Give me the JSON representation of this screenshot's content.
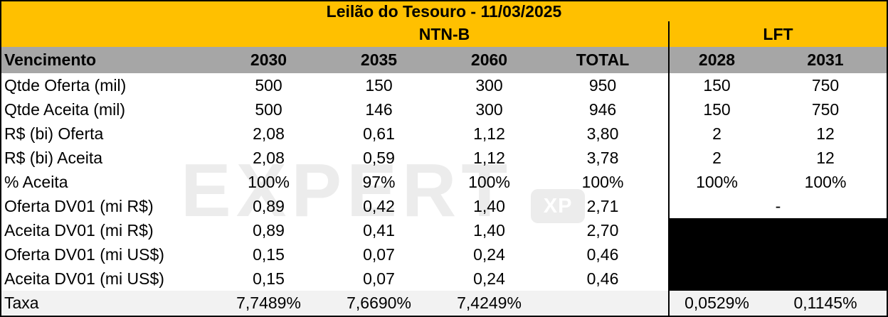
{
  "title": "Leilão do Tesouro - 11/03/2025",
  "groups": {
    "ntnb": "NTN-B",
    "lft": "LFT"
  },
  "header": {
    "label": "Vencimento",
    "cols": [
      "2030",
      "2035",
      "2060",
      "TOTAL",
      "2028",
      "2031"
    ]
  },
  "rows": [
    {
      "label": "Qtde Oferta (mil)",
      "v": [
        "500",
        "150",
        "300",
        "950",
        "150",
        "750"
      ]
    },
    {
      "label": "Qtde Aceita (mil)",
      "v": [
        "500",
        "146",
        "300",
        "946",
        "150",
        "750"
      ]
    },
    {
      "label": "R$ (bi) Oferta",
      "v": [
        "2,08",
        "0,61",
        "1,12",
        "3,80",
        "2",
        "12"
      ]
    },
    {
      "label": "R$ (bi) Aceita",
      "v": [
        "2,08",
        "0,59",
        "1,12",
        "3,78",
        "2",
        "12"
      ]
    },
    {
      "label": "% Aceita",
      "v": [
        "100%",
        "97%",
        "100%",
        "100%",
        "100%",
        "100%"
      ]
    },
    {
      "label": "Oferta DV01 (mi R$)",
      "v": [
        "0,89",
        "0,42",
        "1,40",
        "2,71"
      ],
      "lft_merged": "-"
    },
    {
      "label": "Aceita DV01 (mi R$)",
      "v": [
        "0,89",
        "0,41",
        "1,40",
        "2,70"
      ],
      "lft_redacted": true
    },
    {
      "label": "Oferta DV01 (mi US$)",
      "v": [
        "0,15",
        "0,07",
        "0,24",
        "0,46"
      ],
      "lft_redacted": true
    },
    {
      "label": "Aceita DV01 (mi US$)",
      "v": [
        "0,15",
        "0,07",
        "0,24",
        "0,46"
      ],
      "lft_redacted": true
    },
    {
      "label": "Taxa",
      "v": [
        "7,7489%",
        "7,6690%",
        "7,4249%",
        "",
        "0,0529%",
        "0,1145%"
      ]
    }
  ],
  "watermark": {
    "text": "EXPERT",
    "logo": "XP"
  },
  "colors": {
    "accent_orange": "#FFC000",
    "header_gray": "#A6A6A6",
    "taxa_row_bg": "#F2F2F2",
    "redacted_black": "#000000"
  },
  "chart_data": {
    "type": "table",
    "title": "Leilão do Tesouro - 11/03/2025",
    "column_groups": [
      {
        "name": "NTN-B",
        "columns": [
          "2030",
          "2035",
          "2060",
          "TOTAL"
        ]
      },
      {
        "name": "LFT",
        "columns": [
          "2028",
          "2031"
        ]
      }
    ],
    "row_header": "Vencimento",
    "rows": [
      {
        "label": "Qtde Oferta (mil)",
        "NTN-B": [
          500,
          150,
          300,
          950
        ],
        "LFT": [
          150,
          750
        ]
      },
      {
        "label": "Qtde Aceita (mil)",
        "NTN-B": [
          500,
          146,
          300,
          946
        ],
        "LFT": [
          150,
          750
        ]
      },
      {
        "label": "R$ (bi) Oferta",
        "NTN-B": [
          2.08,
          0.61,
          1.12,
          3.8
        ],
        "LFT": [
          2,
          12
        ]
      },
      {
        "label": "R$ (bi) Aceita",
        "NTN-B": [
          2.08,
          0.59,
          1.12,
          3.78
        ],
        "LFT": [
          2,
          12
        ]
      },
      {
        "label": "% Aceita",
        "NTN-B": [
          "100%",
          "97%",
          "100%",
          "100%"
        ],
        "LFT": [
          "100%",
          "100%"
        ]
      },
      {
        "label": "Oferta DV01 (mi R$)",
        "NTN-B": [
          0.89,
          0.42,
          1.4,
          2.71
        ],
        "LFT": "-"
      },
      {
        "label": "Aceita DV01 (mi R$)",
        "NTN-B": [
          0.89,
          0.41,
          1.4,
          2.7
        ],
        "LFT": "redacted"
      },
      {
        "label": "Oferta DV01 (mi US$)",
        "NTN-B": [
          0.15,
          0.07,
          0.24,
          0.46
        ],
        "LFT": "redacted"
      },
      {
        "label": "Aceita DV01 (mi US$)",
        "NTN-B": [
          0.15,
          0.07,
          0.24,
          0.46
        ],
        "LFT": "redacted"
      },
      {
        "label": "Taxa",
        "NTN-B": [
          "7,7489%",
          "7,6690%",
          "7,4249%",
          ""
        ],
        "LFT": [
          "0,0529%",
          "0,1145%"
        ]
      }
    ]
  }
}
